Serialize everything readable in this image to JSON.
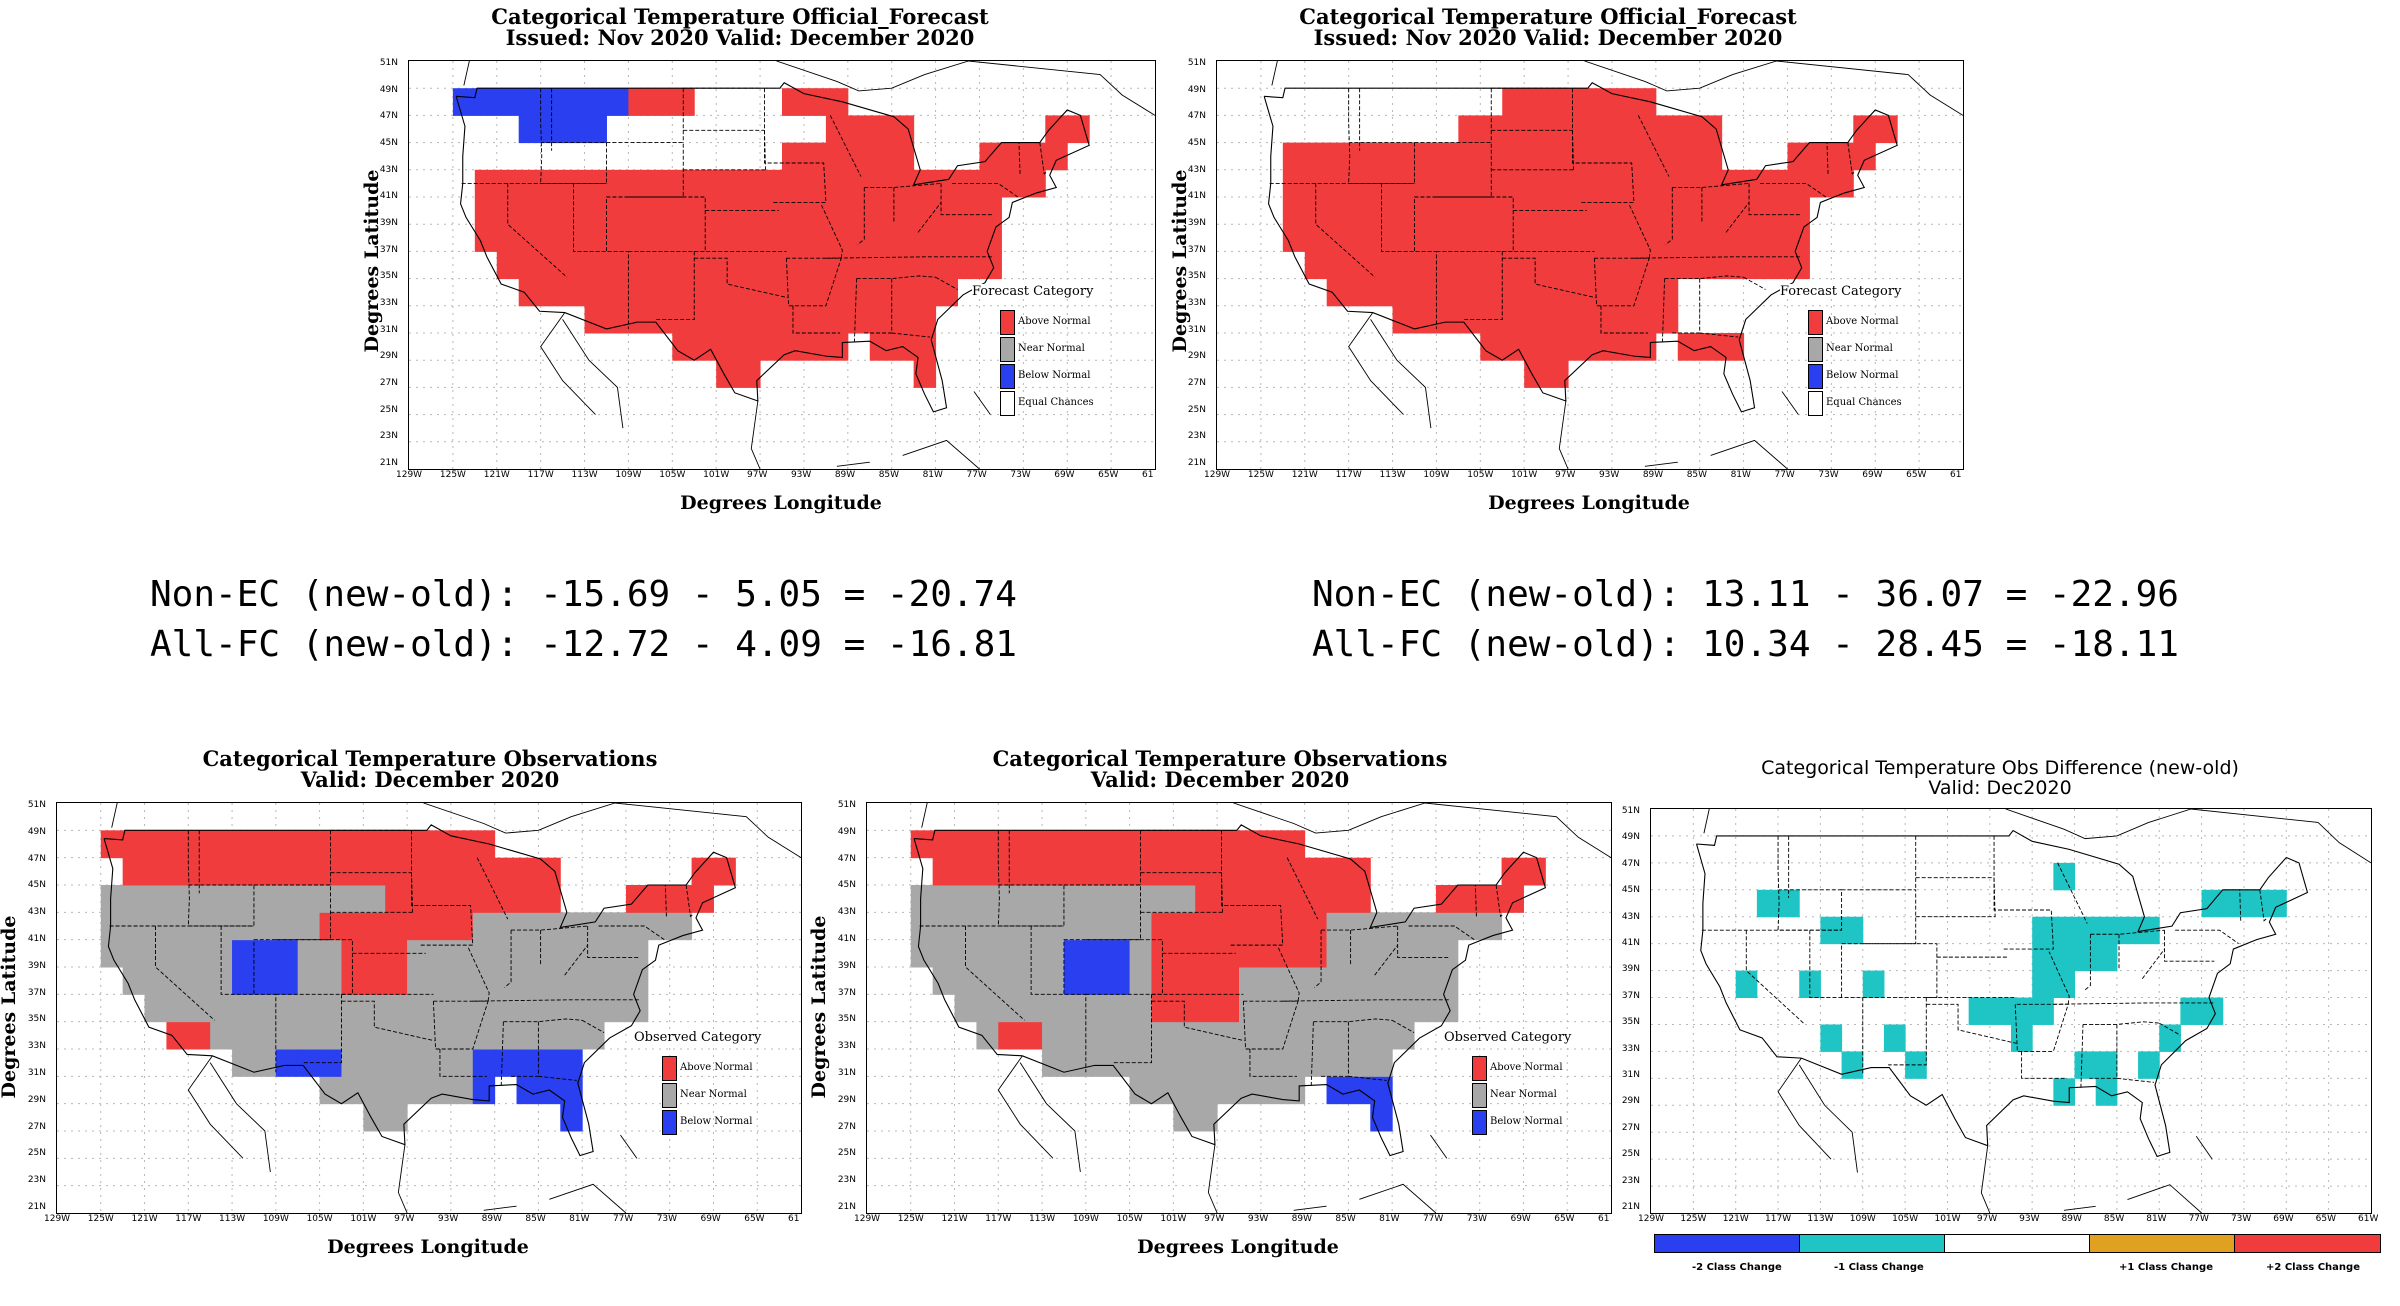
{
  "colors": {
    "above": "#f03c3c",
    "near": "#a8a8a8",
    "below": "#2a3ff0",
    "equal": "#ffffff",
    "diff_m2": "#2a3ff0",
    "diff_m1": "#1fc4c4",
    "diff_0": "#ffffff",
    "diff_p1": "#e0a020",
    "diff_p2": "#f03c3c"
  },
  "lat_ticks": [
    "51N",
    "49N",
    "47N",
    "45N",
    "43N",
    "41N",
    "39N",
    "37N",
    "35N",
    "33N",
    "31N",
    "29N",
    "27N",
    "25N",
    "23N",
    "21N"
  ],
  "lon_ticks": [
    "129W",
    "125W",
    "121W",
    "117W",
    "113W",
    "109W",
    "105W",
    "101W",
    "97W",
    "93W",
    "89W",
    "85W",
    "81W",
    "77W",
    "73W",
    "69W",
    "65W",
    "61"
  ],
  "lon_ticks_diff": [
    "129W",
    "125W",
    "121W",
    "117W",
    "113W",
    "109W",
    "105W",
    "101W",
    "97W",
    "93W",
    "89W",
    "85W",
    "81W",
    "77W",
    "73W",
    "69W",
    "65W",
    "61W"
  ],
  "axis_labels": {
    "y": "Degrees Latitude",
    "x": "Degrees Longitude"
  },
  "panels": {
    "fc_old": {
      "title1": "Categorical Temperature Official_Forecast",
      "title2": "Issued: Nov 2020 Valid: December 2020",
      "legend_title": "Forecast Category",
      "legend": [
        "Above Normal",
        "Near Normal",
        "Below Normal",
        "Equal Chances"
      ]
    },
    "fc_new": {
      "title1": "Categorical Temperature Official_Forecast",
      "title2": "Issued: Nov 2020 Valid: December 2020",
      "legend_title": "Forecast Category",
      "legend": [
        "Above Normal",
        "Near Normal",
        "Below Normal",
        "Equal Chances"
      ]
    },
    "obs_old": {
      "title1": "Categorical Temperature Observations",
      "title2": "Valid: December 2020",
      "legend_title": "Observed Category",
      "legend": [
        "Above Normal",
        "Near Normal",
        "Below Normal"
      ]
    },
    "obs_new": {
      "title1": "Categorical Temperature Observations",
      "title2": "Valid: December 2020",
      "legend_title": "Observed Category",
      "legend": [
        "Above Normal",
        "Near Normal",
        "Below Normal"
      ]
    },
    "diff": {
      "title1": "Categorical Temperature Obs Difference (new-old)",
      "title2": "Valid: Dec2020",
      "colorbar": [
        "-2 Class Change",
        "-1 Class Change",
        "+1 Class Change",
        "+2 Class Change"
      ]
    }
  },
  "scores": {
    "left": [
      "Non-EC (new-old): -15.69 - 5.05 = -20.74",
      "All-FC (new-old): -12.72 - 4.09 = -16.81"
    ],
    "right": [
      "Non-EC (new-old): 13.11 - 36.07 = -22.96",
      "All-FC (new-old): 10.34 - 28.45 = -18.11"
    ]
  }
}
